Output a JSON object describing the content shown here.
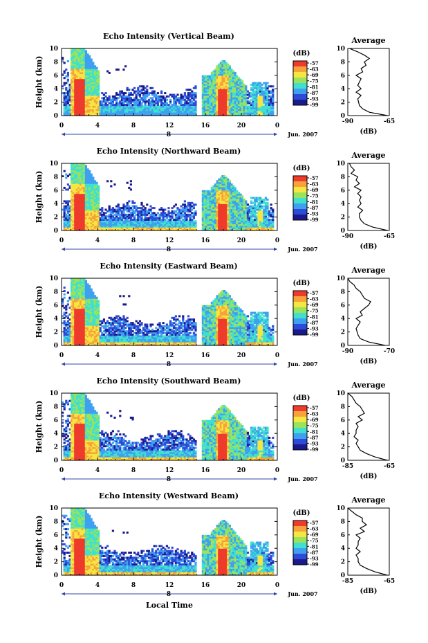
{
  "figure": {
    "xlabel": "Local Time",
    "date_label": "Jun. 2007",
    "day_label": "8",
    "cbar_unit": "(dB)",
    "avg_title": "Average",
    "avg_xlabel": "(dB)"
  },
  "chart_data": [
    {
      "type": "heatmap",
      "title": "Echo Intensity (Vertical Beam)",
      "ylabel": "Height (km)",
      "ylim": [
        0,
        10
      ],
      "y_ticks": [
        "0",
        "2",
        "4",
        "6",
        "8",
        "10"
      ],
      "x_ticks": [
        "0",
        "4",
        "8",
        "12",
        "16",
        "20",
        "0"
      ],
      "xlim_hours": [
        0,
        24
      ],
      "colorbar_ticks": [
        "-57",
        "-63",
        "-69",
        "-75",
        "-81",
        "-87",
        "-93",
        "-99"
      ],
      "colors": [
        "#1a1a8c",
        "#2d4bd6",
        "#3fa0f0",
        "#40e0d0",
        "#9be35a",
        "#f5e642",
        "#f7a23a",
        "#ee3b2c"
      ],
      "avg_profile": {
        "xlim": [
          -90,
          -65
        ],
        "x_ticks": [
          "-90",
          "-65"
        ],
        "y_ticks": [
          "0",
          "2",
          "4",
          "6",
          "8",
          "10"
        ],
        "height_km": [
          0,
          0.5,
          1,
          1.5,
          2,
          2.5,
          3,
          3.5,
          4,
          4.5,
          5,
          5.5,
          6,
          6.5,
          7,
          7.5,
          8,
          8.5,
          9,
          9.5,
          10
        ],
        "db": [
          -66,
          -77,
          -81,
          -83,
          -83.5,
          -84,
          -82,
          -85,
          -82,
          -84,
          -83,
          -82,
          -85,
          -81,
          -82,
          -79,
          -80,
          -77,
          -80,
          -84,
          -89
        ]
      }
    },
    {
      "type": "heatmap",
      "title": "Echo Intensity (Northward Beam)",
      "ylabel": "Height (km)",
      "ylim": [
        0,
        10
      ],
      "y_ticks": [
        "0",
        "2",
        "4",
        "6",
        "8",
        "10"
      ],
      "x_ticks": [
        "0",
        "4",
        "8",
        "12",
        "16",
        "20",
        "0"
      ],
      "xlim_hours": [
        0,
        24
      ],
      "colorbar_ticks": [
        "-57",
        "-63",
        "-69",
        "-75",
        "-81",
        "-87",
        "-93",
        "-99"
      ],
      "colors": [
        "#1a1a8c",
        "#2d4bd6",
        "#3fa0f0",
        "#40e0d0",
        "#9be35a",
        "#f5e642",
        "#f7a23a",
        "#ee3b2c"
      ],
      "avg_profile": {
        "xlim": [
          -90,
          -65
        ],
        "x_ticks": [
          "-90",
          "-65"
        ],
        "y_ticks": [
          "0",
          "2",
          "4",
          "6",
          "8",
          "10"
        ],
        "height_km": [
          0,
          0.5,
          1,
          1.5,
          2,
          2.5,
          3,
          3.5,
          4,
          4.5,
          5,
          5.5,
          6,
          6.5,
          7,
          7.5,
          8,
          8.5,
          9,
          9.5,
          10
        ],
        "db": [
          -66,
          -75,
          -80,
          -82,
          -83,
          -83,
          -81,
          -84,
          -82,
          -83,
          -82,
          -84,
          -82,
          -86,
          -83,
          -85,
          -84,
          -88,
          -86,
          -88,
          -89
        ]
      }
    },
    {
      "type": "heatmap",
      "title": "Echo Intensity (Eastward Beam)",
      "ylabel": "Height (km)",
      "ylim": [
        0,
        10
      ],
      "y_ticks": [
        "0",
        "2",
        "4",
        "6",
        "8",
        "10"
      ],
      "x_ticks": [
        "0",
        "4",
        "8",
        "12",
        "16",
        "20",
        "0"
      ],
      "xlim_hours": [
        0,
        24
      ],
      "colorbar_ticks": [
        "-57",
        "-63",
        "-69",
        "-75",
        "-81",
        "-87",
        "-93",
        "-99"
      ],
      "colors": [
        "#1a1a8c",
        "#2d4bd6",
        "#3fa0f0",
        "#40e0d0",
        "#9be35a",
        "#f5e642",
        "#f7a23a",
        "#ee3b2c"
      ],
      "avg_profile": {
        "xlim": [
          -90,
          -70
        ],
        "x_ticks": [
          "-90",
          "-70"
        ],
        "y_ticks": [
          "0",
          "2",
          "4",
          "6",
          "8",
          "10"
        ],
        "height_km": [
          0,
          0.5,
          1,
          1.5,
          2,
          2.5,
          3,
          3.5,
          4,
          4.5,
          5,
          5.5,
          6,
          6.5,
          7,
          7.5,
          8,
          8.5,
          9,
          9.5,
          10
        ],
        "db": [
          -72,
          -80,
          -84,
          -85,
          -85.5,
          -86,
          -85,
          -84,
          -86,
          -83,
          -84,
          -82,
          -80,
          -79,
          -82,
          -83,
          -84,
          -86,
          -87,
          -89,
          -90
        ]
      }
    },
    {
      "type": "heatmap",
      "title": "Echo Intensity (Southward Beam)",
      "ylabel": "Height (km)",
      "ylim": [
        0,
        10
      ],
      "y_ticks": [
        "0",
        "2",
        "4",
        "6",
        "8",
        "10"
      ],
      "x_ticks": [
        "0",
        "4",
        "8",
        "12",
        "16",
        "20",
        "0"
      ],
      "xlim_hours": [
        0,
        24
      ],
      "colorbar_ticks": [
        "-57",
        "-63",
        "-69",
        "-75",
        "-81",
        "-87",
        "-93",
        "-99"
      ],
      "colors": [
        "#1a1a8c",
        "#2d4bd6",
        "#3fa0f0",
        "#40e0d0",
        "#9be35a",
        "#f5e642",
        "#f7a23a",
        "#ee3b2c"
      ],
      "avg_profile": {
        "xlim": [
          -85,
          -65
        ],
        "x_ticks": [
          "-85",
          "-65"
        ],
        "y_ticks": [
          "0",
          "2",
          "4",
          "6",
          "8",
          "10"
        ],
        "height_km": [
          0,
          0.5,
          1,
          1.5,
          2,
          2.5,
          3,
          3.5,
          4,
          4.5,
          5,
          5.5,
          6,
          6.5,
          7,
          7.5,
          8,
          8.5,
          9,
          9.5,
          10
        ],
        "db": [
          -66,
          -72,
          -76,
          -79,
          -80,
          -81,
          -80,
          -82,
          -81,
          -81,
          -80,
          -81,
          -78,
          -80,
          -77,
          -78,
          -79,
          -81,
          -82,
          -83,
          -85
        ]
      }
    },
    {
      "type": "heatmap",
      "title": "Echo Intensity (Westward Beam)",
      "ylabel": "Height (km)",
      "ylim": [
        0,
        10
      ],
      "y_ticks": [
        "0",
        "2",
        "4",
        "6",
        "8",
        "10"
      ],
      "x_ticks": [
        "0",
        "4",
        "8",
        "12",
        "16",
        "20",
        "0"
      ],
      "xlim_hours": [
        0,
        24
      ],
      "colorbar_ticks": [
        "-57",
        "-63",
        "-69",
        "-75",
        "-81",
        "-87",
        "-93",
        "-99"
      ],
      "colors": [
        "#1a1a8c",
        "#2d4bd6",
        "#3fa0f0",
        "#40e0d0",
        "#9be35a",
        "#f5e642",
        "#f7a23a",
        "#ee3b2c"
      ],
      "avg_profile": {
        "xlim": [
          -85,
          -65
        ],
        "x_ticks": [
          "-85",
          "-65"
        ],
        "y_ticks": [
          "0",
          "2",
          "4",
          "6",
          "8",
          "10"
        ],
        "height_km": [
          0,
          0.5,
          1,
          1.5,
          2,
          2.5,
          3,
          3.5,
          4,
          4.5,
          5,
          5.5,
          6,
          6.5,
          7,
          7.5,
          8,
          8.5,
          9,
          9.5,
          10
        ],
        "db": [
          -66,
          -72,
          -76,
          -79,
          -80,
          -80,
          -81,
          -79,
          -81,
          -80,
          -80,
          -79,
          -81,
          -77,
          -79,
          -76,
          -78,
          -78,
          -81,
          -83,
          -85
        ]
      }
    }
  ]
}
